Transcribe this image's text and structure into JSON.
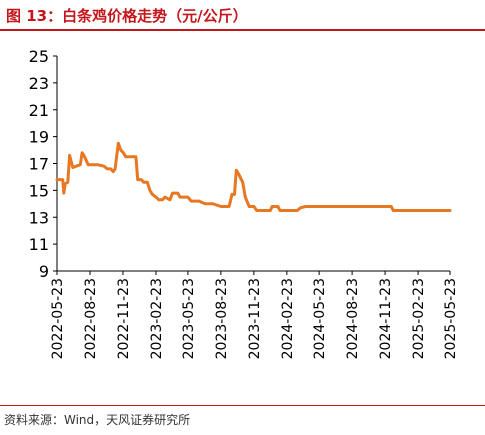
{
  "header": {
    "title": "图 13：白条鸡价格走势（元/公斤）"
  },
  "footer": {
    "source": "资料来源：Wind，天风证券研究所"
  },
  "chart_data": {
    "type": "line",
    "title": "图 13：白条鸡价格走势（元/公斤）",
    "xlabel": "",
    "ylabel": "",
    "ylim": [
      9,
      25
    ],
    "yticks": [
      9,
      11,
      13,
      15,
      17,
      19,
      21,
      23,
      25
    ],
    "xlim": [
      "2022-05-23",
      "2025-05-23"
    ],
    "xticks": [
      "2022-05-23",
      "2022-08-23",
      "2022-11-23",
      "2023-02-23",
      "2023-05-23",
      "2023-08-23",
      "2023-11-23",
      "2024-02-23",
      "2024-05-23",
      "2024-08-23",
      "2024-11-23",
      "2025-02-23",
      "2025-05-23"
    ],
    "grid": false,
    "legend": "none",
    "line_color": "#e87722",
    "series": [
      {
        "name": "",
        "points": [
          [
            "2022-05-23",
            15.8
          ],
          [
            "2022-06-01",
            15.8
          ],
          [
            "2022-06-08",
            15.8
          ],
          [
            "2022-06-11",
            14.8
          ],
          [
            "2022-06-15",
            15.5
          ],
          [
            "2022-06-22",
            15.6
          ],
          [
            "2022-06-27",
            17.6
          ],
          [
            "2022-07-06",
            16.7
          ],
          [
            "2022-07-15",
            16.8
          ],
          [
            "2022-07-27",
            16.9
          ],
          [
            "2022-08-01",
            17.8
          ],
          [
            "2022-08-08",
            17.5
          ],
          [
            "2022-08-18",
            16.9
          ],
          [
            "2022-09-01",
            16.9
          ],
          [
            "2022-09-15",
            16.9
          ],
          [
            "2022-10-01",
            16.8
          ],
          [
            "2022-10-10",
            16.6
          ],
          [
            "2022-10-20",
            16.6
          ],
          [
            "2022-10-27",
            16.4
          ],
          [
            "2022-11-01",
            16.6
          ],
          [
            "2022-11-10",
            18.5
          ],
          [
            "2022-11-17",
            18.0
          ],
          [
            "2022-11-24",
            17.8
          ],
          [
            "2022-12-01",
            17.5
          ],
          [
            "2022-12-15",
            17.5
          ],
          [
            "2022-12-29",
            17.5
          ],
          [
            "2023-01-03",
            15.8
          ],
          [
            "2023-01-13",
            15.8
          ],
          [
            "2023-01-20",
            15.6
          ],
          [
            "2023-01-30",
            15.6
          ],
          [
            "2023-02-06",
            15.0
          ],
          [
            "2023-02-13",
            14.7
          ],
          [
            "2023-02-23",
            14.5
          ],
          [
            "2023-03-03",
            14.3
          ],
          [
            "2023-03-13",
            14.3
          ],
          [
            "2023-03-20",
            14.5
          ],
          [
            "2023-03-27",
            14.4
          ],
          [
            "2023-04-03",
            14.3
          ],
          [
            "2023-04-10",
            14.8
          ],
          [
            "2023-04-25",
            14.8
          ],
          [
            "2023-05-01",
            14.5
          ],
          [
            "2023-05-23",
            14.5
          ],
          [
            "2023-06-01",
            14.2
          ],
          [
            "2023-06-23",
            14.2
          ],
          [
            "2023-07-10",
            14.0
          ],
          [
            "2023-08-01",
            14.0
          ],
          [
            "2023-08-23",
            13.8
          ],
          [
            "2023-09-15",
            13.8
          ],
          [
            "2023-09-23",
            14.7
          ],
          [
            "2023-09-30",
            14.7
          ],
          [
            "2023-10-05",
            16.5
          ],
          [
            "2023-10-12",
            16.2
          ],
          [
            "2023-10-23",
            15.6
          ],
          [
            "2023-10-30",
            14.5
          ],
          [
            "2023-11-10",
            13.8
          ],
          [
            "2023-11-23",
            13.8
          ],
          [
            "2023-12-01",
            13.5
          ],
          [
            "2023-12-23",
            13.5
          ],
          [
            "2024-01-08",
            13.5
          ],
          [
            "2024-01-13",
            13.8
          ],
          [
            "2024-01-29",
            13.8
          ],
          [
            "2024-02-04",
            13.5
          ],
          [
            "2024-02-23",
            13.5
          ],
          [
            "2024-03-10",
            13.5
          ],
          [
            "2024-03-23",
            13.5
          ],
          [
            "2024-04-01",
            13.7
          ],
          [
            "2024-04-15",
            13.8
          ],
          [
            "2024-05-23",
            13.8
          ],
          [
            "2024-07-01",
            13.8
          ],
          [
            "2024-08-23",
            13.8
          ],
          [
            "2024-10-01",
            13.8
          ],
          [
            "2024-11-23",
            13.8
          ],
          [
            "2024-12-10",
            13.8
          ],
          [
            "2024-12-16",
            13.5
          ],
          [
            "2025-02-01",
            13.5
          ],
          [
            "2025-02-23",
            13.5
          ],
          [
            "2025-04-01",
            13.5
          ],
          [
            "2025-05-23",
            13.5
          ]
        ]
      }
    ]
  }
}
